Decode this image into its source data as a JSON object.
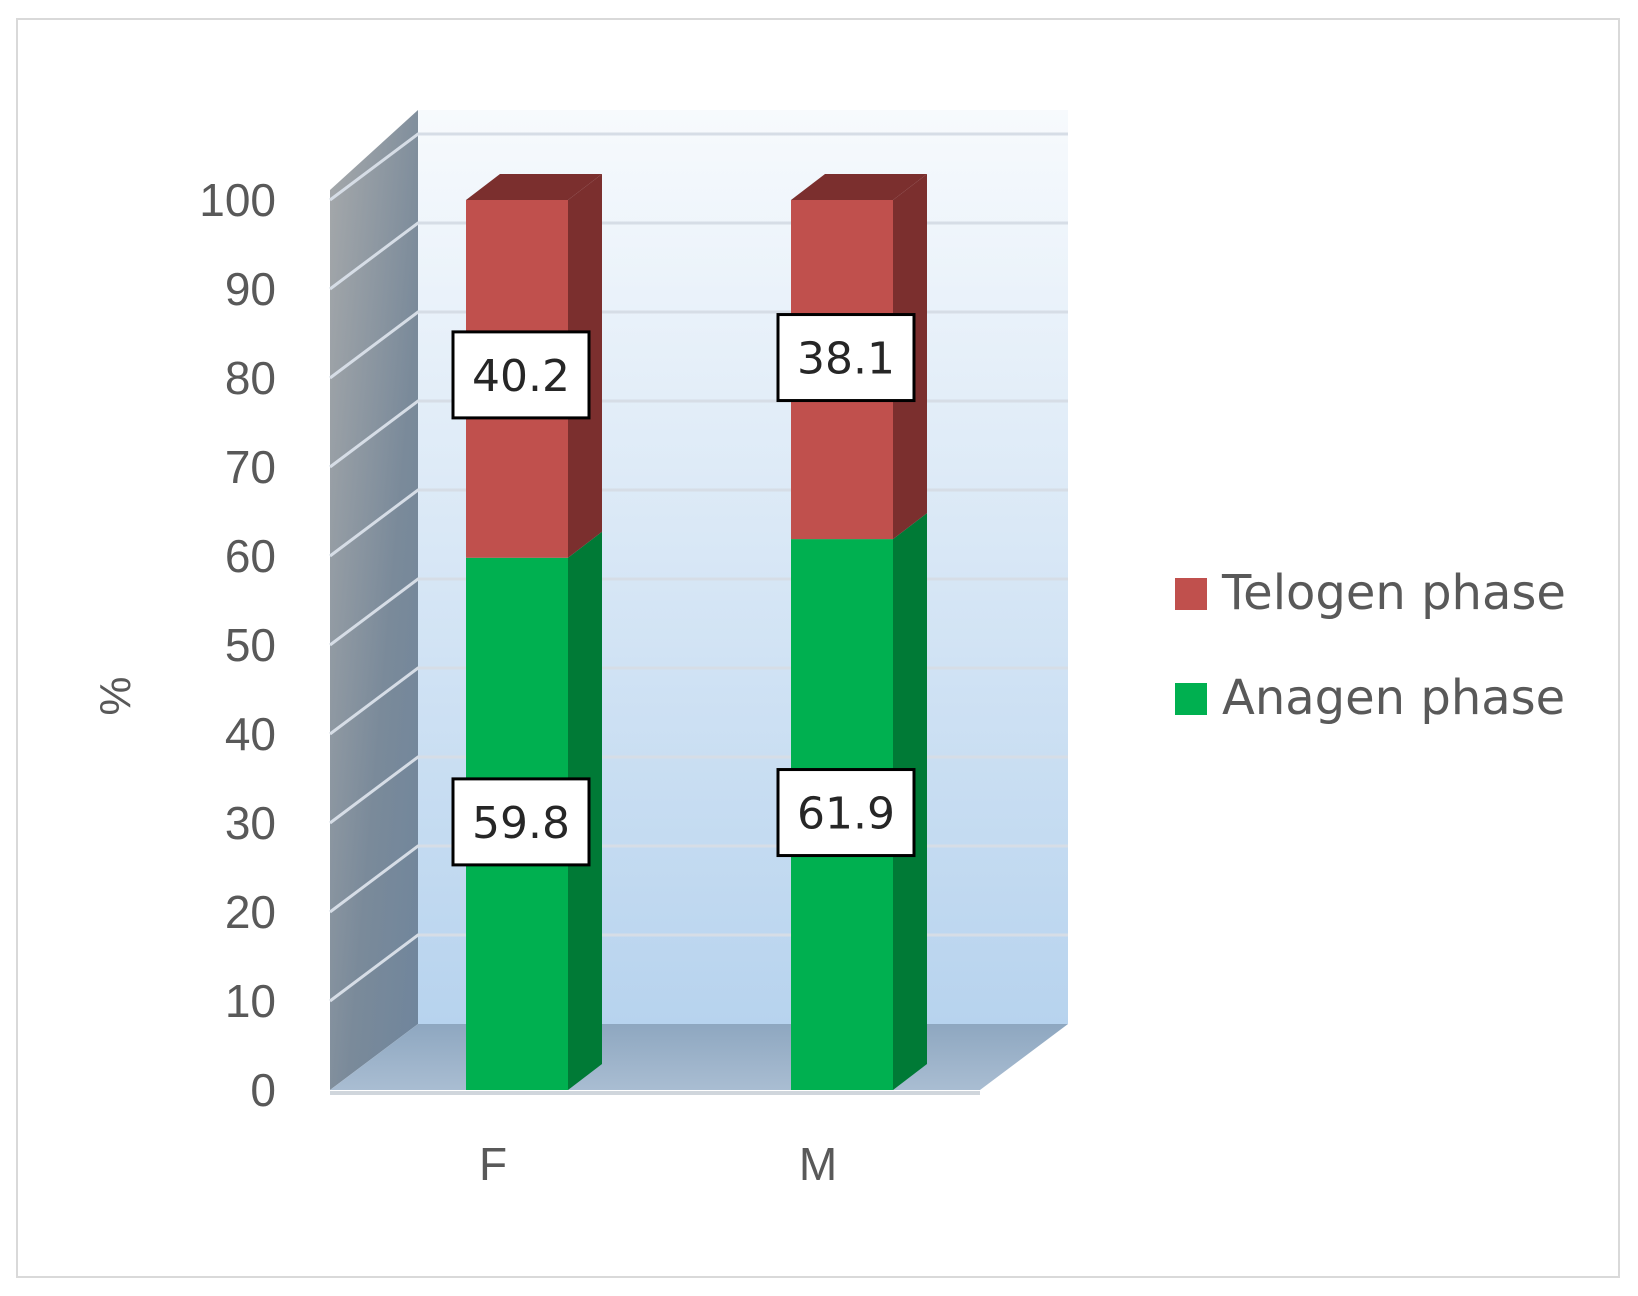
{
  "chart_data": {
    "type": "bar",
    "stacked": true,
    "three_d": true,
    "categories": [
      "F",
      "M"
    ],
    "series": [
      {
        "name": "Anagen phase",
        "values": [
          59.8,
          61.9
        ],
        "color": "#00b050",
        "side_color": "#007a36"
      },
      {
        "name": "Telogen phase",
        "values": [
          40.2,
          38.1
        ],
        "color": "#c0504d",
        "side_color": "#7b2f2e"
      }
    ],
    "data_labels": {
      "Anagen phase": [
        "59.8",
        "61.9"
      ],
      "Telogen phase": [
        "40.2",
        "38.1"
      ]
    },
    "ylabel": "%",
    "xlabel": "",
    "ylim": [
      0,
      100
    ],
    "yticks": [
      "0",
      "10",
      "20",
      "30",
      "40",
      "50",
      "60",
      "70",
      "80",
      "90",
      "100"
    ],
    "grid": true,
    "legend_position": "right",
    "legend_order": [
      "Telogen phase",
      "Anagen phase"
    ]
  }
}
